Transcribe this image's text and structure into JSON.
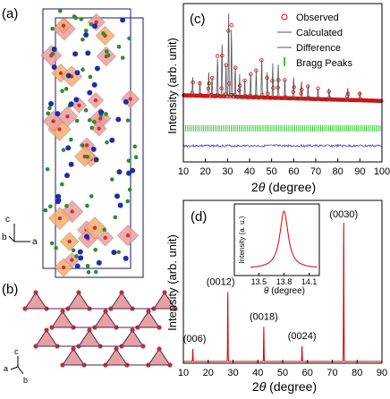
{
  "panels": {
    "a": {
      "label": "(a)",
      "axes": {
        "c": "c",
        "b": "b",
        "a": "a"
      }
    },
    "b": {
      "label": "(b)",
      "axes": {
        "c": "c",
        "a": "a",
        "b": "b"
      }
    }
  },
  "colors": {
    "polyhedra": "#e8a0a0",
    "polyhedra_orange": "#f0b070",
    "blue_atom": "#1c2fa8",
    "green_atom": "#2e8b2e",
    "observed": "#e00000",
    "calculated": "#555555",
    "difference": "#4444dd",
    "bragg": "#33cc33",
    "xrd_line": "#e00000"
  },
  "chart_data": [
    {
      "type": "scatter",
      "panel_label": "(c)",
      "xlabel_prefix": "2",
      "xlabel_symbol": "θ",
      "xlabel_suffix": " (degree)",
      "ylabel": "Intensity (arb. unit)",
      "xlim": [
        10,
        100
      ],
      "xticks": [
        10,
        20,
        30,
        40,
        50,
        60,
        70,
        80,
        90,
        100
      ],
      "legend": [
        "Observed",
        "Calculated",
        "Difference",
        "Bragg Peaks"
      ],
      "legend_placement": "top-right",
      "peaks": [
        {
          "x": 14.2,
          "y": 0.2
        },
        {
          "x": 17.5,
          "y": 0.15
        },
        {
          "x": 21.5,
          "y": 0.28
        },
        {
          "x": 23.0,
          "y": 0.22
        },
        {
          "x": 25.5,
          "y": 0.45
        },
        {
          "x": 27.5,
          "y": 0.62
        },
        {
          "x": 29.3,
          "y": 0.38
        },
        {
          "x": 30.5,
          "y": 1.0
        },
        {
          "x": 31.8,
          "y": 0.8
        },
        {
          "x": 33.5,
          "y": 0.35
        },
        {
          "x": 35.5,
          "y": 0.25
        },
        {
          "x": 37.8,
          "y": 0.2
        },
        {
          "x": 40.5,
          "y": 0.28
        },
        {
          "x": 43.0,
          "y": 0.3
        },
        {
          "x": 45.5,
          "y": 0.45
        },
        {
          "x": 48.0,
          "y": 0.3
        },
        {
          "x": 50.5,
          "y": 0.38
        },
        {
          "x": 53.0,
          "y": 0.4
        },
        {
          "x": 56.0,
          "y": 0.22
        },
        {
          "x": 60.0,
          "y": 0.25
        },
        {
          "x": 63.5,
          "y": 0.2
        },
        {
          "x": 66.5,
          "y": 0.15
        },
        {
          "x": 71.0,
          "y": 0.12
        },
        {
          "x": 76.0,
          "y": 0.12
        },
        {
          "x": 84.5,
          "y": 0.14
        },
        {
          "x": 90.0,
          "y": 0.1
        }
      ]
    },
    {
      "type": "line",
      "panel_label": "(d)",
      "xlabel_prefix": "2",
      "xlabel_symbol": "θ",
      "xlabel_suffix": " (degree)",
      "ylabel": "Intensity (arb. unit)",
      "xlim": [
        10,
        90
      ],
      "xticks": [
        10,
        20,
        30,
        40,
        50,
        60,
        70,
        80,
        90
      ],
      "peaks": [
        {
          "label": "(006)",
          "x": 13.8,
          "y": 0.09
        },
        {
          "label": "(0012)",
          "x": 27.9,
          "y": 0.5
        },
        {
          "label": "(0018)",
          "x": 42.4,
          "y": 0.25
        },
        {
          "label": "(0024)",
          "x": 57.8,
          "y": 0.11
        },
        {
          "label": "(0030)",
          "x": 74.6,
          "y": 1.0
        }
      ],
      "inset": {
        "xlabel": "θ (degree)",
        "xlabel_symbol": "θ",
        "xlabel_suffix": " (degree)",
        "ylabel": "Intensity (a. u.)",
        "xlim": [
          13.4,
          14.2
        ],
        "xticks": [
          "13.5",
          "13.8",
          "14.1"
        ],
        "peak_center": 13.8,
        "peak_width": 0.06
      }
    }
  ]
}
